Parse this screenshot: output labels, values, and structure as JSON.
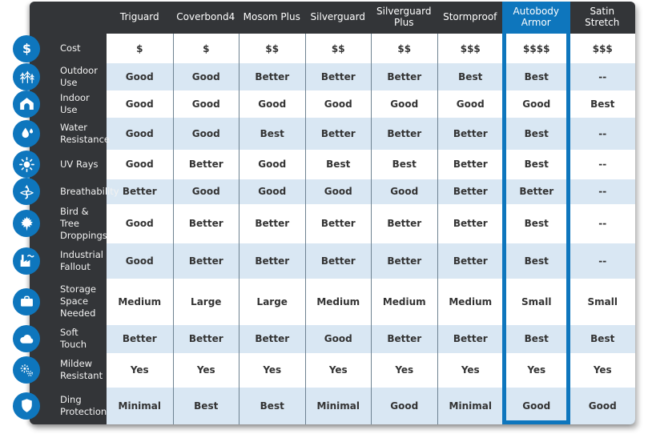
{
  "chart_data": {
    "type": "table",
    "description": "Car cover feature comparison matrix",
    "columns": [
      "Triguard",
      "Coverbond4",
      "Mosom Plus",
      "Silverguard",
      "Silverguard Plus",
      "Stormproof",
      "Autobody Armor",
      "Satin Stretch"
    ],
    "highlighted_column": "Autobody Armor",
    "highlighted_column_index": 6,
    "rows": [
      {
        "label": "Cost",
        "icon": "dollar-icon",
        "values": [
          "$",
          "$",
          "$$",
          "$$",
          "$$",
          "$$$",
          "$$$$",
          "$$$"
        ]
      },
      {
        "label": "Outdoor Use",
        "icon": "trees-icon",
        "values": [
          "Good",
          "Good",
          "Better",
          "Better",
          "Better",
          "Best",
          "Best",
          "--"
        ]
      },
      {
        "label": "Indoor Use",
        "icon": "garage-icon",
        "values": [
          "Good",
          "Good",
          "Good",
          "Good",
          "Good",
          "Good",
          "Good",
          "Best"
        ]
      },
      {
        "label": "Water Resistance",
        "icon": "water-drops-icon",
        "values": [
          "Good",
          "Good",
          "Best",
          "Better",
          "Better",
          "Better",
          "Best",
          "--"
        ]
      },
      {
        "label": "UV Rays",
        "icon": "sun-icon",
        "values": [
          "Good",
          "Better",
          "Good",
          "Best",
          "Best",
          "Better",
          "Best",
          "--"
        ]
      },
      {
        "label": "Breathability",
        "icon": "airflow-icon",
        "values": [
          "Better",
          "Good",
          "Good",
          "Good",
          "Good",
          "Better",
          "Better",
          "--"
        ]
      },
      {
        "label": "Bird & Tree Droppings",
        "icon": "maple-leaf-icon",
        "values": [
          "Good",
          "Better",
          "Better",
          "Better",
          "Better",
          "Better",
          "Best",
          "--"
        ]
      },
      {
        "label": "Industrial Fallout",
        "icon": "factory-icon",
        "values": [
          "Good",
          "Better",
          "Better",
          "Better",
          "Better",
          "Better",
          "Best",
          "--"
        ]
      },
      {
        "label": "Storage Space Needed",
        "icon": "suitcase-icon",
        "values": [
          "Medium",
          "Large",
          "Large",
          "Medium",
          "Medium",
          "Medium",
          "Small",
          "Small"
        ]
      },
      {
        "label": "Soft Touch",
        "icon": "cloud-icon",
        "values": [
          "Better",
          "Better",
          "Better",
          "Good",
          "Better",
          "Better",
          "Best",
          "Best"
        ]
      },
      {
        "label": "Mildew Resistant",
        "icon": "spores-icon",
        "values": [
          "Yes",
          "Yes",
          "Yes",
          "Yes",
          "Yes",
          "Yes",
          "Yes",
          "Yes"
        ]
      },
      {
        "label": "Ding Protection",
        "icon": "shield-icon",
        "values": [
          "Minimal",
          "Best",
          "Best",
          "Minimal",
          "Good",
          "Minimal",
          "Good",
          "Good"
        ]
      }
    ],
    "layout": {
      "row_striping": [
        "white",
        "light-blue"
      ],
      "legend": "none",
      "grid": "vertical-dividers"
    }
  },
  "colors": {
    "accent_blue": "#0e76bd",
    "dark_background": "#333538",
    "alt_row_blue": "#d9e7f3",
    "cell_text": "#333333",
    "divider": "#6e8291"
  }
}
